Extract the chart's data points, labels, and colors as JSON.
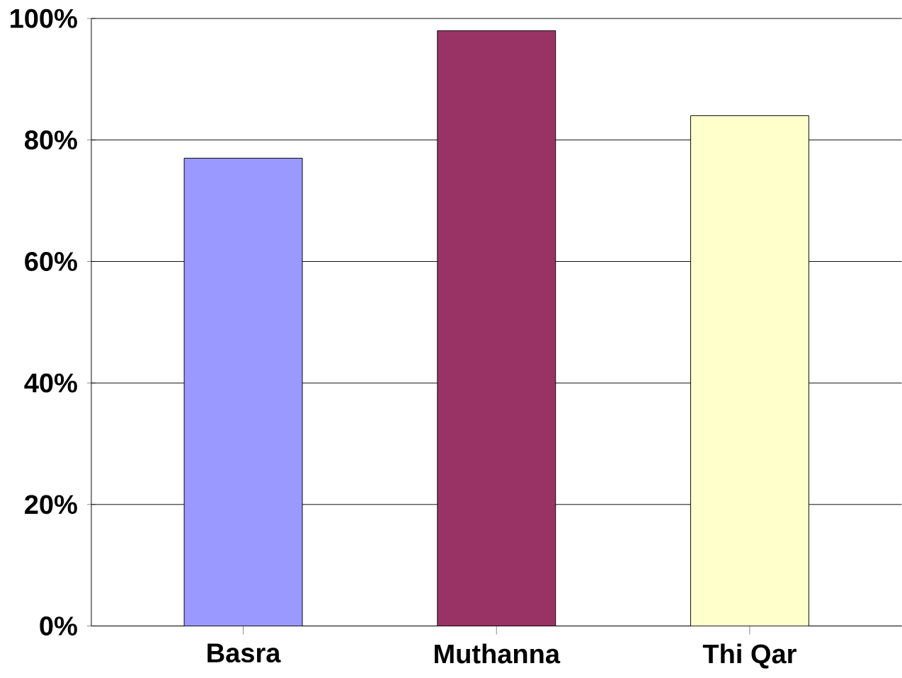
{
  "chart_data": {
    "type": "bar",
    "categories": [
      "Basra",
      "Muthanna",
      "Thi Qar"
    ],
    "values": [
      77,
      98,
      84
    ],
    "colors": [
      "#9999ff",
      "#993366",
      "#ffffcc"
    ],
    "ylim": [
      0,
      100
    ],
    "yticks": [
      {
        "value": 0,
        "label": "0%"
      },
      {
        "value": 20,
        "label": "20%"
      },
      {
        "value": 40,
        "label": "40%"
      },
      {
        "value": 60,
        "label": "60%"
      },
      {
        "value": 80,
        "label": "80%"
      },
      {
        "value": 100,
        "label": "100%"
      }
    ],
    "grid": "y"
  }
}
